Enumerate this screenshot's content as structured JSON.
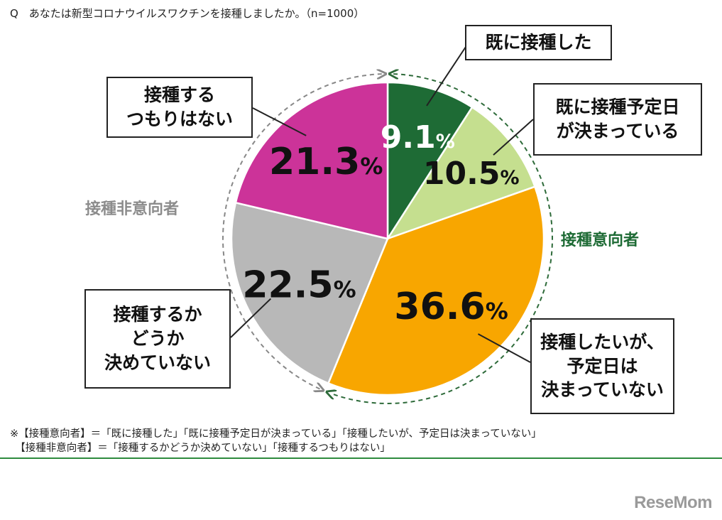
{
  "question": "Q　あなたは新型コロナウイルスワクチンを接種しましたか。（n=1000）",
  "chart_data": {
    "type": "pie",
    "title": "あなたは新型コロナウイルスワクチンを接種しましたか。",
    "n_label": "（n=1000）",
    "slices": [
      {
        "name": "既に接種した",
        "value": 9.1,
        "label": "9.1",
        "color": "#1e6b35",
        "text_color": "#ffffff",
        "callout": [
          "既に接種した"
        ]
      },
      {
        "name": "既に接種予定日が決まっている",
        "value": 10.5,
        "label": "10.5",
        "color": "#c5df8f",
        "text_color": "#111111",
        "callout": [
          "既に接種予定日",
          "が決まっている"
        ]
      },
      {
        "name": "接種したいが、予定日は決まっていない",
        "value": 36.6,
        "label": "36.6",
        "color": "#f8a600",
        "text_color": "#111111",
        "callout": [
          "接種したいが、",
          "予定日は",
          "決まっていない"
        ]
      },
      {
        "name": "接種するかどうか決めていない",
        "value": 22.5,
        "label": "22.5",
        "color": "#b8b8b8",
        "text_color": "#111111",
        "callout": [
          "接種するか",
          "どうか",
          "決めていない"
        ]
      },
      {
        "name": "接種するつもりはない",
        "value": 21.3,
        "label": "21.3",
        "color": "#cc3399",
        "text_color": "#111111",
        "callout": [
          "接種する",
          "つもりはない"
        ]
      }
    ],
    "percent_sign": "%",
    "groups": [
      {
        "name": "接種意向者",
        "color": "#1e6b35"
      },
      {
        "name": "接種非意向者",
        "color": "#8c8c8c"
      }
    ]
  },
  "notes": [
    "※【接種意向者】＝「既に接種した」「既に接種予定日が決まっている」「接種したいが、予定日は決まっていない」",
    "　【接種非意向者】＝「接種するかどうか決めていない」「接種するつもりはない」"
  ],
  "brand": "ReseMom"
}
